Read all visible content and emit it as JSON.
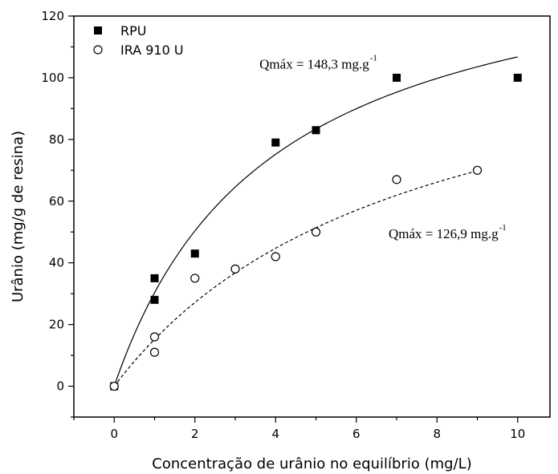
{
  "chart_data": {
    "type": "scatter",
    "xlabel": "Concentração de urânio no equilíbrio (mg/L)",
    "ylabel": "Urânio (mg/g de resina)",
    "xlim": [
      -1,
      10.8
    ],
    "ylim": [
      -10,
      120
    ],
    "x_ticks": [
      0,
      2,
      4,
      6,
      8,
      10
    ],
    "y_ticks": [
      0,
      20,
      40,
      60,
      80,
      100,
      120
    ],
    "legend_position": "top-left",
    "grid": false,
    "series": [
      {
        "name": "RPU",
        "marker": "filled-square",
        "color": "#000000",
        "points": [
          [
            0,
            0
          ],
          [
            1,
            35
          ],
          [
            1,
            28
          ],
          [
            2,
            43
          ],
          [
            4,
            79
          ],
          [
            5,
            83
          ],
          [
            7,
            100
          ],
          [
            10,
            100
          ]
        ],
        "fit": {
          "qmax": 148.3,
          "k": 0.257,
          "x_range": [
            0,
            10
          ],
          "style": "solid"
        },
        "annotation": {
          "text": "Qmáx = 148,3 mg.g",
          "superscript": "-1",
          "at": [
            3.6,
            103
          ]
        }
      },
      {
        "name": "IRA 910 U",
        "marker": "open-circle",
        "color": "#000000",
        "points": [
          [
            0,
            0
          ],
          [
            1,
            16
          ],
          [
            1,
            11
          ],
          [
            2,
            35
          ],
          [
            3,
            38
          ],
          [
            4,
            42
          ],
          [
            5,
            50
          ],
          [
            7,
            67
          ],
          [
            9,
            70
          ]
        ],
        "fit": {
          "qmax": 126.9,
          "k": 0.136,
          "x_range": [
            0,
            9
          ],
          "style": "dashed"
        },
        "annotation": {
          "text": "Qmáx = 126,9 mg.g",
          "superscript": "-1",
          "at": [
            6.8,
            48
          ]
        }
      }
    ]
  }
}
